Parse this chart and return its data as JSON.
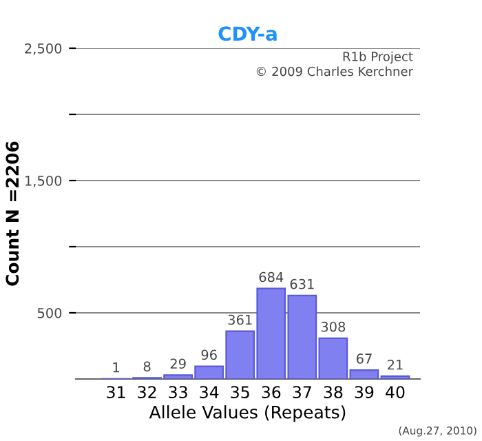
{
  "chart_data": {
    "type": "bar",
    "title": "CDY-a",
    "xlabel": "Allele Values (Repeats)",
    "ylabel": "Count N =2206",
    "categories": [
      "31",
      "32",
      "33",
      "34",
      "35",
      "36",
      "37",
      "38",
      "39",
      "40"
    ],
    "values": [
      1,
      8,
      29,
      96,
      361,
      684,
      631,
      308,
      67,
      21
    ],
    "color": "#8080f0",
    "data_labels": true,
    "grid": "y",
    "ylim": [
      0,
      2500
    ],
    "yticks": [
      {
        "value": 500,
        "label": "500"
      },
      {
        "value": 1000,
        "label": null
      },
      {
        "value": 1500,
        "label": "1,500"
      },
      {
        "value": 2000,
        "label": null
      },
      {
        "value": 2500,
        "label": "2,500"
      }
    ],
    "annotations": [
      "R1b Project",
      "© 2009 Charles Kerchner",
      "(Aug.27, 2010)"
    ]
  }
}
